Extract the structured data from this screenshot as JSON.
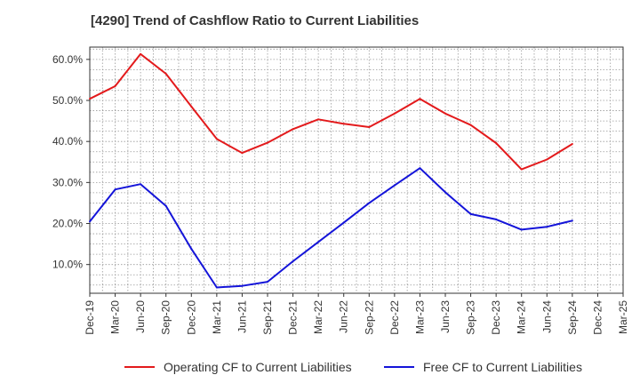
{
  "chart_data": {
    "type": "line",
    "title": "[4290]  Trend of Cashflow Ratio to Current Liabilities",
    "xlabel": "",
    "ylabel": "",
    "categories": [
      "Dec-19",
      "Mar-20",
      "Jun-20",
      "Sep-20",
      "Dec-20",
      "Mar-21",
      "Jun-21",
      "Sep-21",
      "Dec-21",
      "Mar-22",
      "Jun-22",
      "Sep-22",
      "Dec-22",
      "Mar-23",
      "Jun-23",
      "Sep-23",
      "Dec-23",
      "Mar-24",
      "Jun-24",
      "Sep-24",
      "Dec-24",
      "Mar-25"
    ],
    "yticks": [
      "10.0%",
      "20.0%",
      "30.0%",
      "40.0%",
      "50.0%",
      "60.0%"
    ],
    "ylim": [
      3,
      63
    ],
    "grid": true,
    "legend_position": "bottom",
    "series": [
      {
        "name": "Operating CF to Current Liabilities",
        "color": "#e31a1c",
        "values": [
          50.4,
          53.5,
          61.3,
          56.5,
          48.5,
          40.6,
          37.2,
          39.7,
          43.0,
          45.4,
          44.3,
          43.5,
          46.8,
          50.4,
          46.8,
          44.0,
          39.6,
          33.2,
          35.6,
          39.4,
          null,
          null
        ]
      },
      {
        "name": "Free CF to Current Liabilities",
        "color": "#1414d9",
        "values": [
          20.5,
          28.3,
          29.6,
          24.3,
          13.8,
          4.4,
          4.8,
          5.8,
          10.8,
          15.5,
          20.2,
          25.0,
          29.3,
          33.5,
          27.6,
          22.3,
          21.0,
          18.5,
          19.2,
          20.7,
          null,
          null
        ]
      }
    ]
  }
}
